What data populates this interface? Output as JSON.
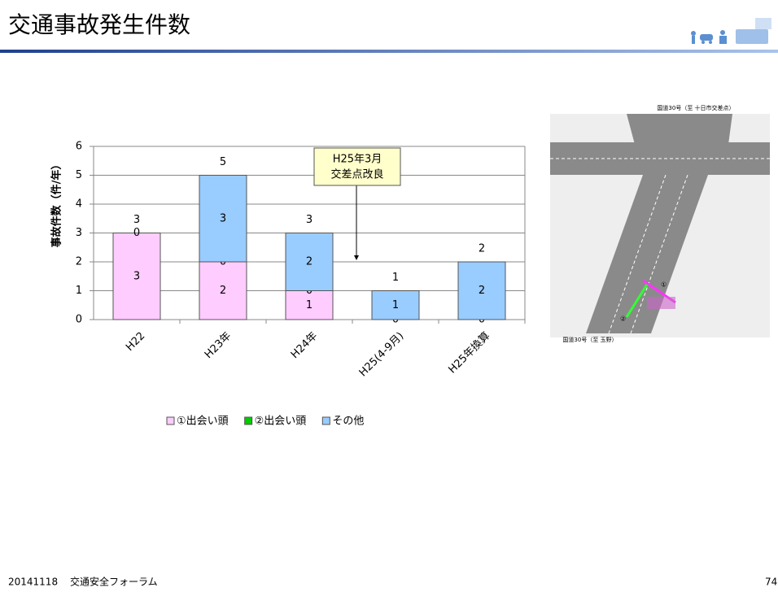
{
  "header": {
    "title": "交通事故発生件数"
  },
  "footer": {
    "date": "20141118",
    "event": "交通安全フォーラム",
    "page": "74"
  },
  "map": {
    "labels": [
      "国道30号（至 十日市交差点）",
      "国道30号（至 玉野）",
      "①",
      "②"
    ]
  },
  "chart_data": {
    "type": "stacked-bar",
    "y_label": "事故件数（件/年）",
    "categories": [
      "H22",
      "H23年",
      "H24年",
      "H25(4-9月)",
      "H25年換算"
    ],
    "series": [
      {
        "name": "①出会い頭",
        "color": "#ffccff",
        "values": [
          3,
          2,
          1,
          0,
          0
        ],
        "value_labels": [
          "3",
          "2",
          "1",
          null,
          null
        ]
      },
      {
        "name": "②出会い頭",
        "color": "#00cc00",
        "values": [
          0,
          0,
          0,
          0,
          0
        ],
        "value_labels": [
          "0",
          "0",
          "0",
          "0",
          "0"
        ]
      },
      {
        "name": "その他",
        "color": "#99ccff",
        "values": [
          0,
          3,
          2,
          1,
          2
        ],
        "value_labels": [
          null,
          "3",
          "2",
          "1",
          "2"
        ]
      }
    ],
    "totals": [
      3,
      5,
      3,
      1,
      2
    ],
    "annotation": [
      "H25年3月",
      "交差点改良"
    ],
    "ylim": [
      0,
      6
    ],
    "yticks": [
      0,
      1,
      2,
      3,
      4,
      5,
      6
    ],
    "grid": true
  }
}
